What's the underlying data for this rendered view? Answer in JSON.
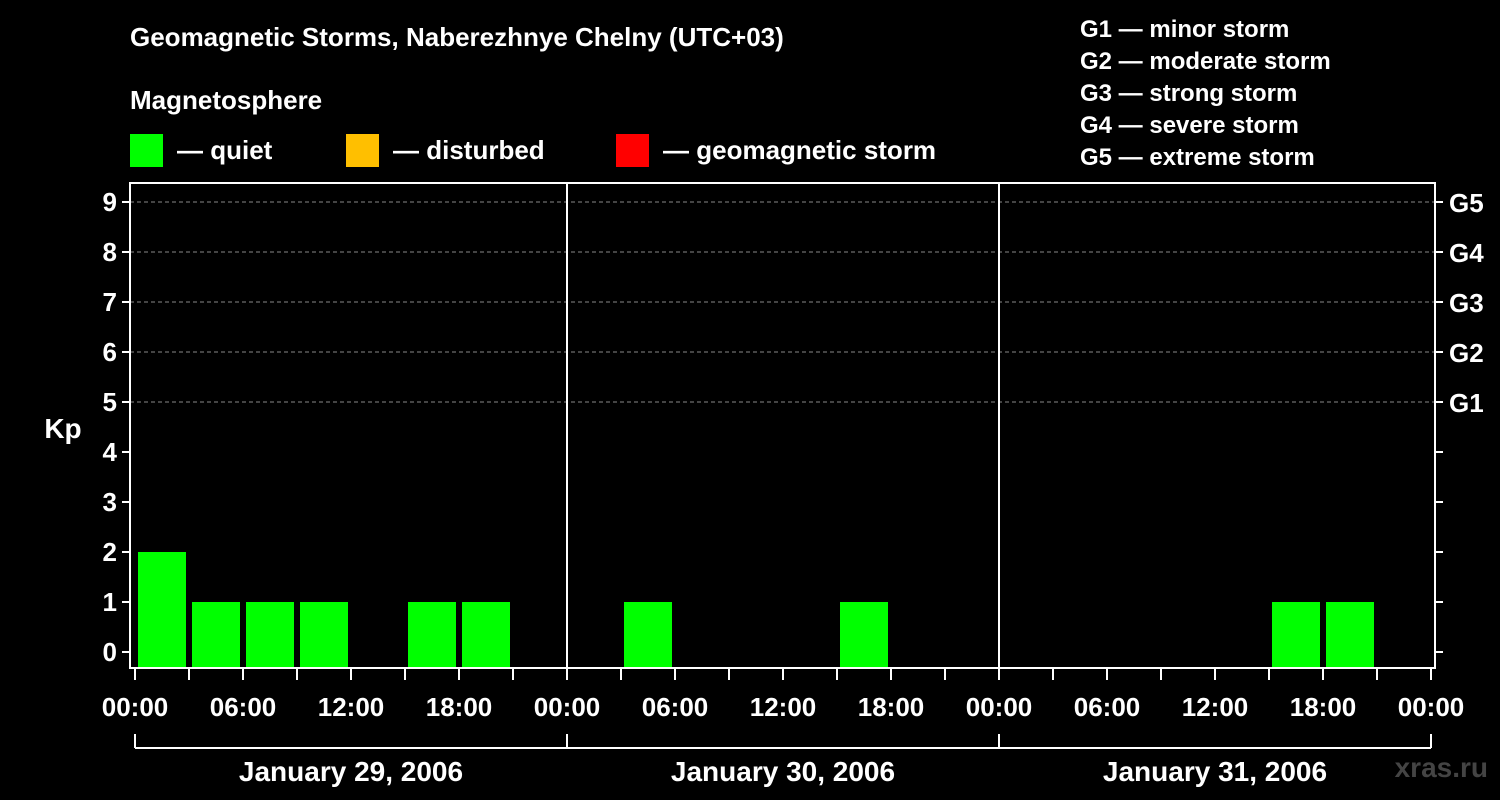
{
  "title": "Geomagnetic Storms, Naberezhnye Chelny (UTC+03)",
  "subtitle": "Magnetosphere",
  "legend": [
    {
      "label": "— quiet",
      "color": "#00ff00"
    },
    {
      "label": "— disturbed",
      "color": "#ffbf00"
    },
    {
      "label": "— geomagnetic storm",
      "color": "#ff0000"
    }
  ],
  "g_scale": [
    "G1 — minor storm",
    "G2 — moderate storm",
    "G3 — strong storm",
    "G4 — severe storm",
    "G5 — extreme storm"
  ],
  "watermark": "xras.ru",
  "chart_data": {
    "type": "bar",
    "title": "Geomagnetic Storms, Naberezhnye Chelny (UTC+03)",
    "ylabel": "Kp",
    "ylim": [
      0,
      9
    ],
    "yticks": [
      "0",
      "1",
      "2",
      "3",
      "4",
      "5",
      "6",
      "7",
      "8",
      "9"
    ],
    "right_ticks": [
      {
        "kp": 5,
        "label": "G1"
      },
      {
        "kp": 6,
        "label": "G2"
      },
      {
        "kp": 7,
        "label": "G3"
      },
      {
        "kp": 8,
        "label": "G4"
      },
      {
        "kp": 9,
        "label": "G5"
      }
    ],
    "xtick_labels": [
      "00:00",
      "06:00",
      "12:00",
      "18:00",
      "00:00",
      "06:00",
      "12:00",
      "18:00",
      "00:00",
      "06:00",
      "12:00",
      "18:00",
      "00:00"
    ],
    "days": [
      "January 29, 2006",
      "January 30, 2006",
      "January 31, 2006"
    ],
    "interval_hours": 3,
    "series": [
      {
        "values": [
          2,
          1,
          1,
          1,
          0,
          1,
          1,
          0,
          0,
          1,
          0,
          0,
          0,
          1,
          0,
          0,
          0,
          0,
          0,
          0,
          0,
          1,
          1,
          0
        ]
      }
    ],
    "bar_color": "#00ff00",
    "grid": true
  }
}
